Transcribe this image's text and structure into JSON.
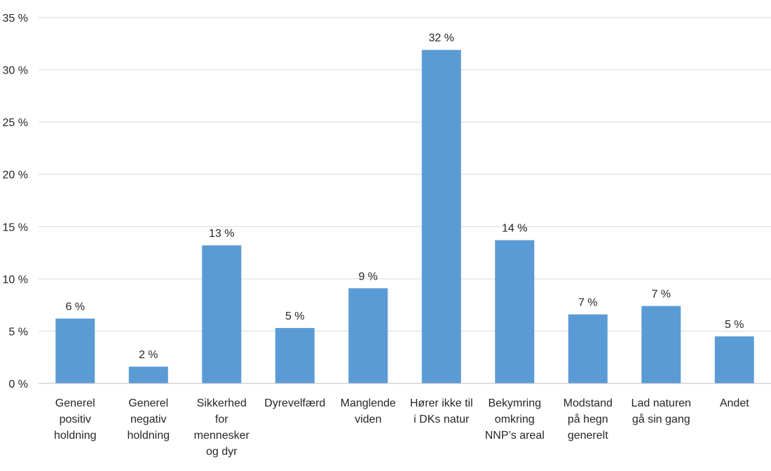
{
  "chart_data": {
    "type": "bar",
    "categories": [
      [
        "Generel",
        "positiv",
        "holdning"
      ],
      [
        "Generel",
        "negativ",
        "holdning"
      ],
      [
        "Sikkerhed",
        "for",
        "mennesker",
        "og dyr"
      ],
      [
        "Dyrevelfærd"
      ],
      [
        "Manglende",
        "viden"
      ],
      [
        "Hører ikke til",
        "i DKs natur"
      ],
      [
        "Bekymring",
        "omkring",
        "NNP’s areal"
      ],
      [
        "Modstand",
        "på hegn",
        "generelt"
      ],
      [
        "Lad naturen",
        "gå sin gang"
      ],
      [
        "Andet"
      ]
    ],
    "values": [
      6.2,
      1.6,
      13.2,
      5.3,
      9.1,
      31.9,
      13.7,
      6.6,
      7.4,
      4.5
    ],
    "data_labels": [
      "6 %",
      "2 %",
      "13 %",
      "5 %",
      "9 %",
      "32 %",
      "14 %",
      "7 %",
      "7 %",
      "5 %"
    ],
    "yticks": [
      0,
      5,
      10,
      15,
      20,
      25,
      30,
      35
    ],
    "ytick_labels": [
      "0 %",
      "5 %",
      "10 %",
      "15 %",
      "20 %",
      "25 %",
      "30 %",
      "35 %"
    ],
    "ylim": [
      0,
      35
    ],
    "grid": true,
    "legend": false,
    "bar_color": "#5b9bd5"
  }
}
